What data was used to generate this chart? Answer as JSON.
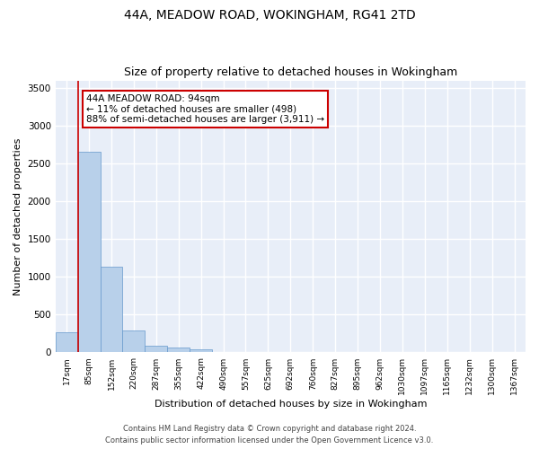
{
  "title1": "44A, MEADOW ROAD, WOKINGHAM, RG41 2TD",
  "title2": "Size of property relative to detached houses in Wokingham",
  "xlabel": "Distribution of detached houses by size in Wokingham",
  "ylabel": "Number of detached properties",
  "bin_labels": [
    "17sqm",
    "85sqm",
    "152sqm",
    "220sqm",
    "287sqm",
    "355sqm",
    "422sqm",
    "490sqm",
    "557sqm",
    "625sqm",
    "692sqm",
    "760sqm",
    "827sqm",
    "895sqm",
    "962sqm",
    "1030sqm",
    "1097sqm",
    "1165sqm",
    "1232sqm",
    "1300sqm",
    "1367sqm"
  ],
  "bar_heights": [
    270,
    2650,
    1140,
    290,
    90,
    60,
    40,
    5,
    2,
    1,
    1,
    0,
    0,
    0,
    0,
    0,
    0,
    0,
    0,
    0,
    0
  ],
  "bar_color": "#b8d0ea",
  "bar_edge_color": "#6699cc",
  "annotation_title": "44A MEADOW ROAD: 94sqm",
  "annotation_line1": "← 11% of detached houses are smaller (498)",
  "annotation_line2": "88% of semi-detached houses are larger (3,911) →",
  "annotation_box_color": "#ffffff",
  "annotation_box_edge_color": "#cc0000",
  "vline_color": "#cc0000",
  "ylim": [
    0,
    3600
  ],
  "yticks": [
    0,
    500,
    1000,
    1500,
    2000,
    2500,
    3000,
    3500
  ],
  "footer1": "Contains HM Land Registry data © Crown copyright and database right 2024.",
  "footer2": "Contains public sector information licensed under the Open Government Licence v3.0.",
  "bg_color": "#e8eef8",
  "grid_color": "#ffffff",
  "title1_fontsize": 10,
  "title2_fontsize": 9,
  "xlabel_fontsize": 8,
  "ylabel_fontsize": 8,
  "tick_fontsize": 6.5,
  "footer_fontsize": 6,
  "annotation_fontsize": 7.5
}
